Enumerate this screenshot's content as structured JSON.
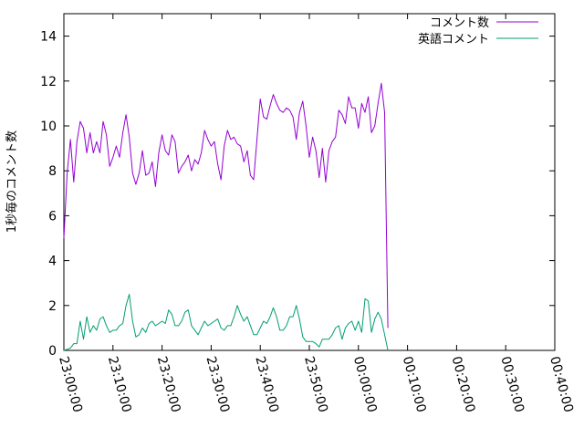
{
  "chart_data": {
    "type": "line",
    "title": "",
    "xlabel": "",
    "ylabel": "1秒毎のコメント数",
    "xlim": [
      "23:00:00",
      "00:40:00"
    ],
    "ylim": [
      0,
      15
    ],
    "x_ticks": [
      "23:00:00",
      "23:10:00",
      "23:20:00",
      "23:30:00",
      "23:40:00",
      "23:50:00",
      "00:00:00",
      "00:10:00",
      "00:20:00",
      "00:30:00",
      "00:40:00"
    ],
    "y_ticks": [
      0,
      2,
      4,
      6,
      8,
      10,
      12,
      14
    ],
    "grid": false,
    "legend": "top-right",
    "series": [
      {
        "name": "コメント数",
        "color": "#9400d3",
        "points": [
          [
            "23:00:00",
            5.0
          ],
          [
            "23:00:40",
            7.9
          ],
          [
            "23:01:20",
            9.4
          ],
          [
            "23:02:00",
            7.5
          ],
          [
            "23:02:40",
            9.3
          ],
          [
            "23:03:20",
            10.2
          ],
          [
            "23:04:00",
            9.9
          ],
          [
            "23:04:40",
            8.8
          ],
          [
            "23:05:20",
            9.7
          ],
          [
            "23:06:00",
            8.8
          ],
          [
            "23:06:40",
            9.3
          ],
          [
            "23:07:20",
            8.8
          ],
          [
            "23:08:00",
            10.2
          ],
          [
            "23:08:40",
            9.6
          ],
          [
            "23:09:20",
            8.2
          ],
          [
            "23:10:00",
            8.6
          ],
          [
            "23:10:40",
            9.1
          ],
          [
            "23:11:20",
            8.6
          ],
          [
            "23:12:00",
            9.7
          ],
          [
            "23:12:40",
            10.5
          ],
          [
            "23:13:20",
            9.5
          ],
          [
            "23:14:00",
            7.9
          ],
          [
            "23:14:40",
            7.4
          ],
          [
            "23:15:20",
            7.9
          ],
          [
            "23:16:00",
            8.9
          ],
          [
            "23:16:40",
            7.8
          ],
          [
            "23:17:20",
            7.9
          ],
          [
            "23:18:00",
            8.4
          ],
          [
            "23:18:40",
            7.3
          ],
          [
            "23:19:20",
            8.8
          ],
          [
            "23:20:00",
            9.6
          ],
          [
            "23:20:40",
            8.9
          ],
          [
            "23:21:20",
            8.7
          ],
          [
            "23:22:00",
            9.6
          ],
          [
            "23:22:40",
            9.3
          ],
          [
            "23:23:20",
            7.9
          ],
          [
            "23:24:00",
            8.2
          ],
          [
            "23:24:40",
            8.4
          ],
          [
            "23:25:20",
            8.7
          ],
          [
            "23:26:00",
            8.0
          ],
          [
            "23:26:40",
            8.5
          ],
          [
            "23:27:20",
            8.3
          ],
          [
            "23:28:00",
            8.8
          ],
          [
            "23:28:40",
            9.8
          ],
          [
            "23:29:20",
            9.4
          ],
          [
            "23:30:00",
            9.1
          ],
          [
            "23:30:40",
            9.3
          ],
          [
            "23:31:20",
            8.3
          ],
          [
            "23:32:00",
            7.6
          ],
          [
            "23:32:40",
            9.1
          ],
          [
            "23:33:20",
            9.8
          ],
          [
            "23:34:00",
            9.4
          ],
          [
            "23:34:40",
            9.5
          ],
          [
            "23:35:20",
            9.2
          ],
          [
            "23:36:00",
            9.1
          ],
          [
            "23:36:40",
            8.4
          ],
          [
            "23:37:20",
            8.9
          ],
          [
            "23:38:00",
            7.8
          ],
          [
            "23:38:40",
            7.6
          ],
          [
            "23:39:20",
            9.4
          ],
          [
            "23:40:00",
            11.2
          ],
          [
            "23:40:40",
            10.4
          ],
          [
            "23:41:20",
            10.3
          ],
          [
            "23:42:00",
            10.9
          ],
          [
            "23:42:40",
            11.4
          ],
          [
            "23:43:20",
            11.0
          ],
          [
            "23:44:00",
            10.7
          ],
          [
            "23:44:40",
            10.6
          ],
          [
            "23:45:20",
            10.8
          ],
          [
            "23:46:00",
            10.7
          ],
          [
            "23:46:40",
            10.4
          ],
          [
            "23:47:20",
            9.4
          ],
          [
            "23:48:00",
            10.6
          ],
          [
            "23:48:40",
            11.1
          ],
          [
            "23:49:20",
            10.0
          ],
          [
            "23:50:00",
            8.6
          ],
          [
            "23:50:40",
            9.5
          ],
          [
            "23:51:20",
            8.9
          ],
          [
            "23:52:00",
            7.7
          ],
          [
            "23:52:40",
            9.0
          ],
          [
            "23:53:20",
            7.5
          ],
          [
            "23:54:00",
            8.9
          ],
          [
            "23:54:40",
            9.3
          ],
          [
            "23:55:20",
            9.5
          ],
          [
            "23:56:00",
            10.7
          ],
          [
            "23:56:40",
            10.5
          ],
          [
            "23:57:20",
            10.1
          ],
          [
            "23:58:00",
            11.3
          ],
          [
            "23:58:40",
            10.8
          ],
          [
            "23:59:20",
            10.8
          ],
          [
            "00:00:00",
            9.9
          ],
          [
            "00:00:40",
            11.0
          ],
          [
            "00:01:20",
            10.6
          ],
          [
            "00:02:00",
            11.3
          ],
          [
            "00:02:40",
            9.7
          ],
          [
            "00:03:20",
            10.0
          ],
          [
            "00:04:00",
            11.0
          ],
          [
            "00:04:40",
            11.9
          ],
          [
            "00:05:20",
            10.6
          ],
          [
            "00:06:00",
            1.0
          ]
        ]
      },
      {
        "name": "英語コメント",
        "color": "#009e73",
        "points": [
          [
            "23:00:00",
            0.0
          ],
          [
            "23:00:40",
            0.05
          ],
          [
            "23:01:20",
            0.1
          ],
          [
            "23:02:00",
            0.3
          ],
          [
            "23:02:40",
            0.3
          ],
          [
            "23:03:20",
            1.3
          ],
          [
            "23:04:00",
            0.5
          ],
          [
            "23:04:40",
            1.5
          ],
          [
            "23:05:20",
            0.8
          ],
          [
            "23:06:00",
            1.1
          ],
          [
            "23:06:40",
            0.9
          ],
          [
            "23:07:20",
            1.4
          ],
          [
            "23:08:00",
            1.5
          ],
          [
            "23:08:40",
            1.1
          ],
          [
            "23:09:20",
            0.8
          ],
          [
            "23:10:00",
            0.9
          ],
          [
            "23:10:40",
            0.9
          ],
          [
            "23:11:20",
            1.1
          ],
          [
            "23:12:00",
            1.2
          ],
          [
            "23:12:40",
            2.0
          ],
          [
            "23:13:20",
            2.5
          ],
          [
            "23:14:00",
            1.3
          ],
          [
            "23:14:40",
            0.6
          ],
          [
            "23:15:20",
            0.7
          ],
          [
            "23:16:00",
            1.0
          ],
          [
            "23:16:40",
            0.8
          ],
          [
            "23:17:20",
            1.2
          ],
          [
            "23:18:00",
            1.3
          ],
          [
            "23:18:40",
            1.1
          ],
          [
            "23:19:20",
            1.2
          ],
          [
            "23:20:00",
            1.3
          ],
          [
            "23:20:40",
            1.2
          ],
          [
            "23:21:20",
            1.8
          ],
          [
            "23:22:00",
            1.6
          ],
          [
            "23:22:40",
            1.1
          ],
          [
            "23:23:20",
            1.1
          ],
          [
            "23:24:00",
            1.3
          ],
          [
            "23:24:40",
            1.7
          ],
          [
            "23:25:20",
            1.8
          ],
          [
            "23:26:00",
            1.1
          ],
          [
            "23:26:40",
            0.9
          ],
          [
            "23:27:20",
            0.7
          ],
          [
            "23:28:00",
            1.0
          ],
          [
            "23:28:40",
            1.3
          ],
          [
            "23:29:20",
            1.1
          ],
          [
            "23:30:00",
            1.2
          ],
          [
            "23:30:40",
            1.3
          ],
          [
            "23:31:20",
            1.4
          ],
          [
            "23:32:00",
            1.0
          ],
          [
            "23:32:40",
            0.9
          ],
          [
            "23:33:20",
            1.1
          ],
          [
            "23:34:00",
            1.1
          ],
          [
            "23:34:40",
            1.5
          ],
          [
            "23:35:20",
            2.0
          ],
          [
            "23:36:00",
            1.6
          ],
          [
            "23:36:40",
            1.3
          ],
          [
            "23:37:20",
            1.5
          ],
          [
            "23:38:00",
            1.1
          ],
          [
            "23:38:40",
            0.7
          ],
          [
            "23:39:20",
            0.7
          ],
          [
            "23:40:00",
            1.0
          ],
          [
            "23:40:40",
            1.3
          ],
          [
            "23:41:20",
            1.2
          ],
          [
            "23:42:00",
            1.5
          ],
          [
            "23:42:40",
            1.9
          ],
          [
            "23:43:20",
            1.5
          ],
          [
            "23:44:00",
            0.9
          ],
          [
            "23:44:40",
            0.9
          ],
          [
            "23:45:20",
            1.1
          ],
          [
            "23:46:00",
            1.5
          ],
          [
            "23:46:40",
            1.5
          ],
          [
            "23:47:20",
            2.0
          ],
          [
            "23:48:00",
            1.4
          ],
          [
            "23:48:40",
            0.6
          ],
          [
            "23:49:20",
            0.4
          ],
          [
            "23:50:00",
            0.4
          ],
          [
            "23:50:40",
            0.4
          ],
          [
            "23:51:20",
            0.3
          ],
          [
            "23:52:00",
            0.15
          ],
          [
            "23:52:40",
            0.5
          ],
          [
            "23:53:20",
            0.5
          ],
          [
            "23:54:00",
            0.5
          ],
          [
            "23:54:40",
            0.7
          ],
          [
            "23:55:20",
            1.0
          ],
          [
            "23:56:00",
            1.1
          ],
          [
            "23:56:40",
            0.5
          ],
          [
            "23:57:20",
            1.0
          ],
          [
            "23:58:00",
            1.2
          ],
          [
            "23:58:40",
            1.3
          ],
          [
            "23:59:20",
            0.9
          ],
          [
            "00:00:00",
            1.3
          ],
          [
            "00:00:40",
            0.8
          ],
          [
            "00:01:20",
            2.3
          ],
          [
            "00:02:00",
            2.2
          ],
          [
            "00:02:40",
            0.8
          ],
          [
            "00:03:20",
            1.4
          ],
          [
            "00:04:00",
            1.7
          ],
          [
            "00:04:40",
            1.4
          ],
          [
            "00:05:20",
            0.7
          ],
          [
            "00:06:00",
            0.0
          ]
        ]
      }
    ]
  }
}
